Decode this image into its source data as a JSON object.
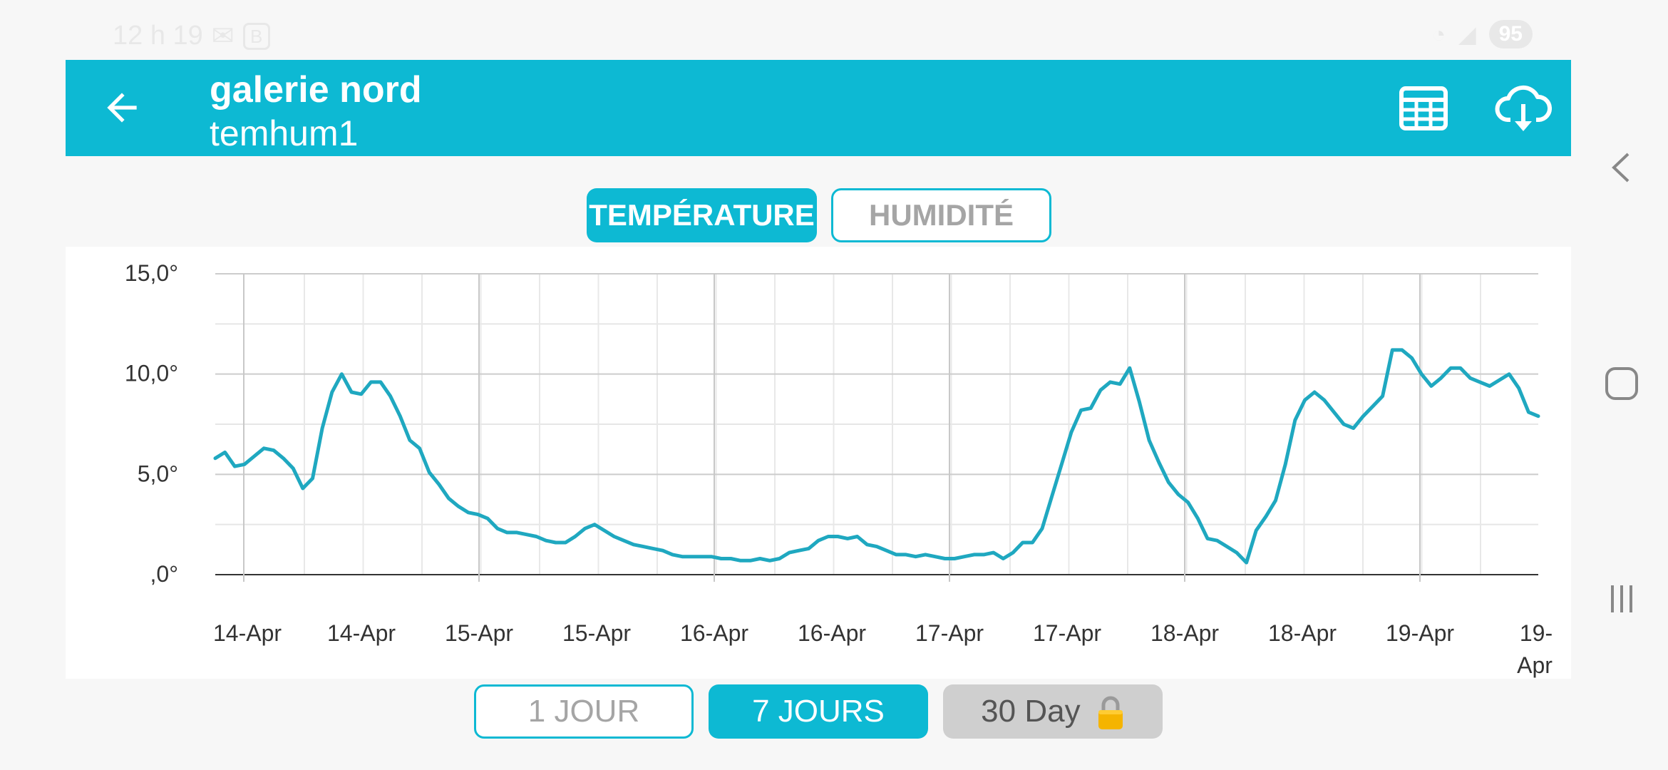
{
  "status_bar": {
    "time": "12 h 19",
    "battery": "95",
    "badge": "B"
  },
  "header": {
    "title": "galerie nord",
    "subtitle": "temhum1"
  },
  "tabs": [
    {
      "label": "TEMPÉRATURE",
      "active": true
    },
    {
      "label": "HUMIDITÉ",
      "active": false
    }
  ],
  "ranges": [
    {
      "label": "1 JOUR",
      "active": false
    },
    {
      "label": "7 JOURS",
      "active": true
    },
    {
      "label": "30 Day",
      "locked": true
    }
  ],
  "colors": {
    "accent": "#0db9d3",
    "line": "#1fa8c0"
  },
  "icons": {
    "back": "arrow-left-icon",
    "table": "table-grid-icon",
    "download": "cloud-download-icon"
  },
  "chart_data": {
    "type": "line",
    "title": "",
    "xlabel": "",
    "ylabel": "",
    "ylim": [
      0,
      15
    ],
    "y_ticks": [
      {
        "value": 0,
        "label": ",0°"
      },
      {
        "value": 5,
        "label": "5,0°"
      },
      {
        "value": 10,
        "label": "10,0°"
      },
      {
        "value": 15,
        "label": "15,0°"
      }
    ],
    "x_ticks": [
      "14-Apr",
      "14-Apr",
      "15-Apr",
      "15-Apr",
      "16-Apr",
      "16-Apr",
      "17-Apr",
      "17-Apr",
      "18-Apr",
      "18-Apr",
      "19-Apr",
      "19-Apr"
    ],
    "grid": true,
    "series": [
      {
        "values": [
          5.8,
          6.1,
          5.4,
          5.5,
          5.9,
          6.3,
          6.2,
          5.8,
          5.3,
          4.3,
          4.8,
          7.3,
          9.1,
          10.0,
          9.1,
          9.0,
          9.6,
          9.6,
          8.9,
          7.9,
          6.7,
          6.3,
          5.1,
          4.5,
          3.8,
          3.4,
          3.1,
          3.0,
          2.8,
          2.3,
          2.1,
          2.1,
          2.0,
          1.9,
          1.7,
          1.6,
          1.6,
          1.9,
          2.3,
          2.5,
          2.2,
          1.9,
          1.7,
          1.5,
          1.4,
          1.3,
          1.2,
          1.0,
          0.9,
          0.9,
          0.9,
          0.9,
          0.8,
          0.8,
          0.7,
          0.7,
          0.8,
          0.7,
          0.8,
          1.1,
          1.2,
          1.3,
          1.7,
          1.9,
          1.9,
          1.8,
          1.9,
          1.5,
          1.4,
          1.2,
          1.0,
          1.0,
          0.9,
          1.0,
          0.9,
          0.8,
          0.8,
          0.9,
          1.0,
          1.0,
          1.1,
          0.8,
          1.1,
          1.6,
          1.6,
          2.3,
          3.9,
          5.5,
          7.1,
          8.2,
          8.3,
          9.2,
          9.6,
          9.5,
          10.3,
          8.6,
          6.7,
          5.6,
          4.6,
          4.0,
          3.6,
          2.8,
          1.8,
          1.7,
          1.4,
          1.1,
          0.6,
          2.2,
          2.9,
          3.7,
          5.5,
          7.7,
          8.7,
          9.1,
          8.7,
          8.1,
          7.5,
          7.3,
          7.9,
          8.4,
          8.9,
          11.2,
          11.2,
          10.8,
          10.0,
          9.4,
          9.8,
          10.3,
          10.3,
          9.8,
          9.6,
          9.4,
          9.7,
          10.0,
          9.3,
          8.1,
          7.9
        ]
      }
    ]
  }
}
